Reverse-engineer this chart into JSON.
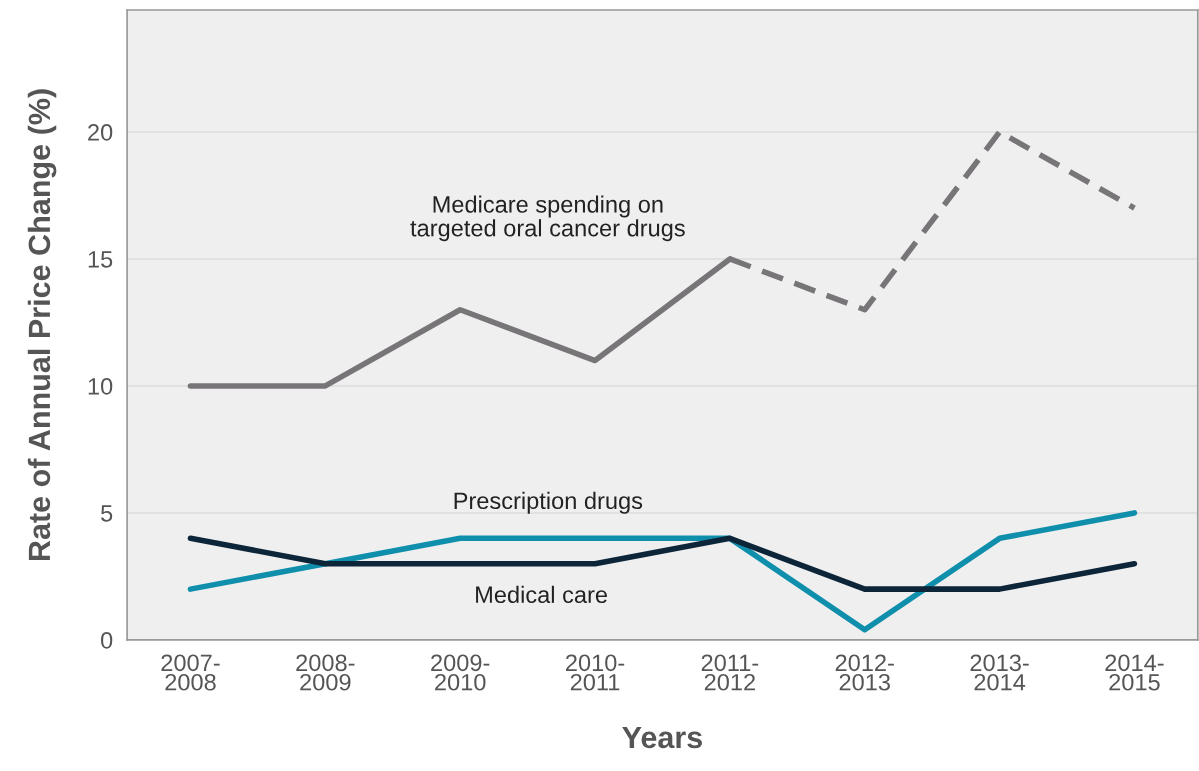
{
  "chart_data": {
    "type": "line",
    "xlabel": "Years",
    "ylabel": "Rate of Annual Price Change (%)",
    "categories": [
      "2007-\n2008",
      "2008-\n2009",
      "2009-\n2010",
      "2010-\n2011",
      "2011-\n2012",
      "2012-\n2013",
      "2013-\n2014",
      "2014-\n2015"
    ],
    "series": [
      {
        "name": "Medicare spending on\ntargeted oral cancer drugs",
        "color": "#777577",
        "line_style": "solid",
        "values": [
          10,
          10,
          13,
          11,
          15,
          null,
          null,
          null
        ]
      },
      {
        "color": "#777577",
        "line_style": "dashed",
        "values": [
          null,
          null,
          null,
          null,
          15,
          13,
          20,
          17
        ]
      },
      {
        "name": "Prescription drugs",
        "color": "#0f8fab",
        "line_style": "solid",
        "values": [
          2,
          3,
          4,
          4,
          4,
          0.4,
          4,
          5
        ]
      },
      {
        "name": "Medical care",
        "color": "#0d2538",
        "line_style": "solid",
        "values": [
          4,
          3,
          3,
          3,
          4,
          2,
          2,
          3
        ]
      }
    ],
    "ylim": [
      0,
      24.8
    ],
    "yticks": [
      0,
      5,
      10,
      15,
      20
    ],
    "grid": "y",
    "legend": false,
    "marker": "none"
  }
}
